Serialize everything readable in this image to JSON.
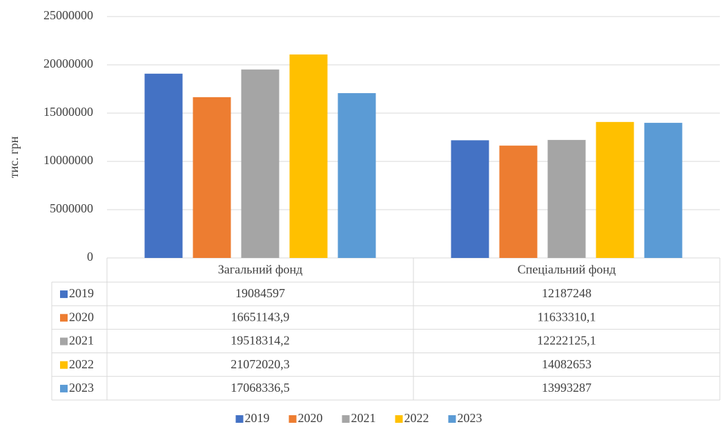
{
  "chart_data": {
    "type": "bar",
    "y_label": "тис. грн",
    "categories": [
      "Загальний фонд",
      "Спеціальний фонд"
    ],
    "series": [
      {
        "name": "2019",
        "color": "#4472c4",
        "values": [
          19084597,
          12187248
        ]
      },
      {
        "name": "2020",
        "color": "#ed7d31",
        "values": [
          16651143.9,
          11633310.1
        ],
        "value_labels": [
          "16651143,9",
          "11633310,1"
        ]
      },
      {
        "name": "2021",
        "color": "#a5a5a5",
        "values": [
          19518314.2,
          12222125.1
        ],
        "value_labels": [
          "19518314,2",
          "12222125,1"
        ]
      },
      {
        "name": "2022",
        "color": "#ffc000",
        "values": [
          21072020.3,
          14082653
        ],
        "value_labels": [
          "21072020,3",
          "14082653"
        ]
      },
      {
        "name": "2023",
        "color": "#5b9bd5",
        "values": [
          17068336.5,
          13993287
        ],
        "value_labels": [
          "17068336,5",
          "13993287"
        ]
      }
    ],
    "ylim": [
      0,
      25000000
    ],
    "yticks": [
      0,
      5000000,
      10000000,
      15000000,
      20000000,
      25000000
    ],
    "grid": true,
    "legend": "bottom"
  }
}
